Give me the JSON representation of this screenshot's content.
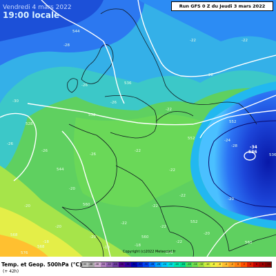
{
  "header": {
    "date": "Vendredi 4 mars 2022",
    "local_time": "19:00 locale",
    "run_info": "Run GFS 0 Z du Jeudi 3 mars 2022"
  },
  "footer": {
    "legend_title": "Temp. et Geop. 500hPa (°C)",
    "lead_time": "(+ 42h)",
    "copyright": "Copyright (c)2022 Meteociel.fr"
  },
  "colorbar": {
    "ticks": [
      "-50",
      "-48",
      "-46",
      "-44",
      "-42",
      "-40",
      "-38",
      "-36",
      "-34",
      "-32",
      "-30",
      "-28",
      "-26",
      "-24",
      "-22",
      "-20",
      "-18",
      "-16",
      "-14",
      "-12",
      "-10",
      "-8",
      "-6",
      "-4",
      "-2",
      "0",
      "2",
      "4",
      "6",
      "8",
      "10"
    ],
    "colors": [
      "#c0c0c0",
      "#a8a8a8",
      "#d0b0d0",
      "#b080c0",
      "#9060b0",
      "#7040a0",
      "#500090",
      "#3000a0",
      "#0000b0",
      "#0020d0",
      "#0040f0",
      "#0070ff",
      "#00a0ff",
      "#00c8ff",
      "#00e0e0",
      "#00e8b0",
      "#00e090",
      "#40e060",
      "#70e050",
      "#a0e040",
      "#d0f040",
      "#f0f040",
      "#ffe040",
      "#ffc030",
      "#ffa020",
      "#ff8010",
      "#ff5000",
      "#e02000",
      "#c00000",
      "#a00000",
      "#800000"
    ]
  },
  "map_labels": {
    "contours": [
      "544",
      "536",
      "528",
      "552",
      "544",
      "552",
      "560",
      "568",
      "560",
      "568",
      "552",
      "536",
      "552",
      "560",
      "576",
      "576"
    ],
    "temps": [
      "-28",
      "-26",
      "-30",
      "-26",
      "-26",
      "-26",
      "-26",
      "-20",
      "-22",
      "-22",
      "-22",
      "-22",
      "-22",
      "-22",
      "-22",
      "-22",
      "-24",
      "-20",
      "-22",
      "-22",
      "-22",
      "-20",
      "-20",
      "-20",
      "-18",
      "-18",
      "-18",
      "-20",
      "-34",
      "-28"
    ],
    "low_center_value": "-34",
    "low_center_contour": "536"
  }
}
